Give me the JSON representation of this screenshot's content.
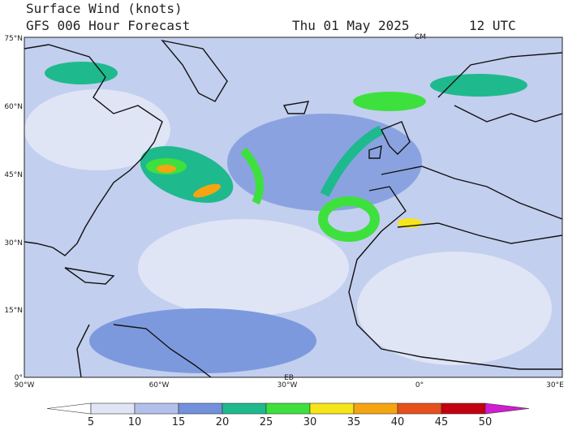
{
  "header": {
    "title": "Surface Wind (knots)",
    "subtitle": "GFS 006 Hour Forecast",
    "date": "Thu 01 May 2025",
    "time": "12 UTC"
  },
  "map": {
    "lat_labels": [
      "75°N",
      "60°N",
      "45°N",
      "30°N",
      "15°N",
      "0°"
    ],
    "lon_labels": [
      "90°W",
      "60°W",
      "30°W",
      "0°",
      "30°E"
    ],
    "markers": [
      "CM",
      "EB"
    ]
  },
  "colorbar": {
    "ticks": [
      5,
      10,
      15,
      20,
      25,
      30,
      35,
      40,
      45,
      50
    ],
    "colors": [
      "#ffffff",
      "#dfe5f5",
      "#b3c1ea",
      "#7290dc",
      "#1fb98e",
      "#3ee03e",
      "#f6e51a",
      "#f5a412",
      "#e6501c",
      "#c2000f",
      "#d21cd2"
    ]
  }
}
